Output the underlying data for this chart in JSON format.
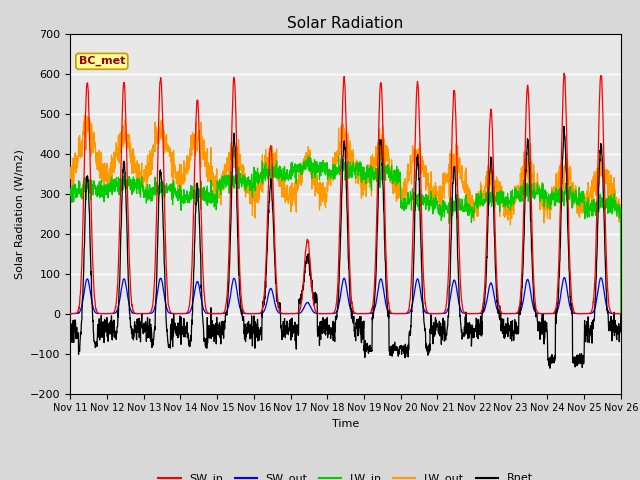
{
  "title": "Solar Radiation",
  "ylabel": "Solar Radiation (W/m2)",
  "xlabel": "Time",
  "ylim": [
    -200,
    700
  ],
  "yticks": [
    -200,
    -100,
    0,
    100,
    200,
    300,
    400,
    500,
    600,
    700
  ],
  "days": 15,
  "xtick_labels": [
    "Nov 11",
    "Nov 12",
    "Nov 13",
    "Nov 14",
    "Nov 15",
    "Nov 16",
    "Nov 17",
    "Nov 18",
    "Nov 19",
    "Nov 20",
    "Nov 21",
    "Nov 22",
    "Nov 23",
    "Nov 24",
    "Nov 25",
    "Nov 26"
  ],
  "colors": {
    "SW_in": "#ff0000",
    "SW_out": "#0000ff",
    "LW_in": "#00cc00",
    "LW_out": "#ff9900",
    "Rnet": "#000000"
  },
  "annotation_text": "BC_met",
  "annotation_facecolor": "#ffff99",
  "annotation_edgecolor": "#cc9900",
  "annotation_textcolor": "#990000",
  "bg_color": "#e8e8e8",
  "grid_color": "#ffffff",
  "n_points": 2160,
  "sw_peaks": [
    580,
    580,
    590,
    535,
    590,
    420,
    185,
    590,
    580,
    580,
    560,
    510,
    570,
    600,
    600
  ],
  "lw_out_peaks": [
    460,
    440,
    450,
    440,
    400,
    390,
    380,
    440,
    420,
    390,
    380,
    340,
    360,
    360,
    360
  ],
  "lw_in_base": [
    300,
    310,
    295,
    285,
    320,
    340,
    355,
    350,
    340,
    270,
    255,
    275,
    290,
    285,
    260
  ]
}
